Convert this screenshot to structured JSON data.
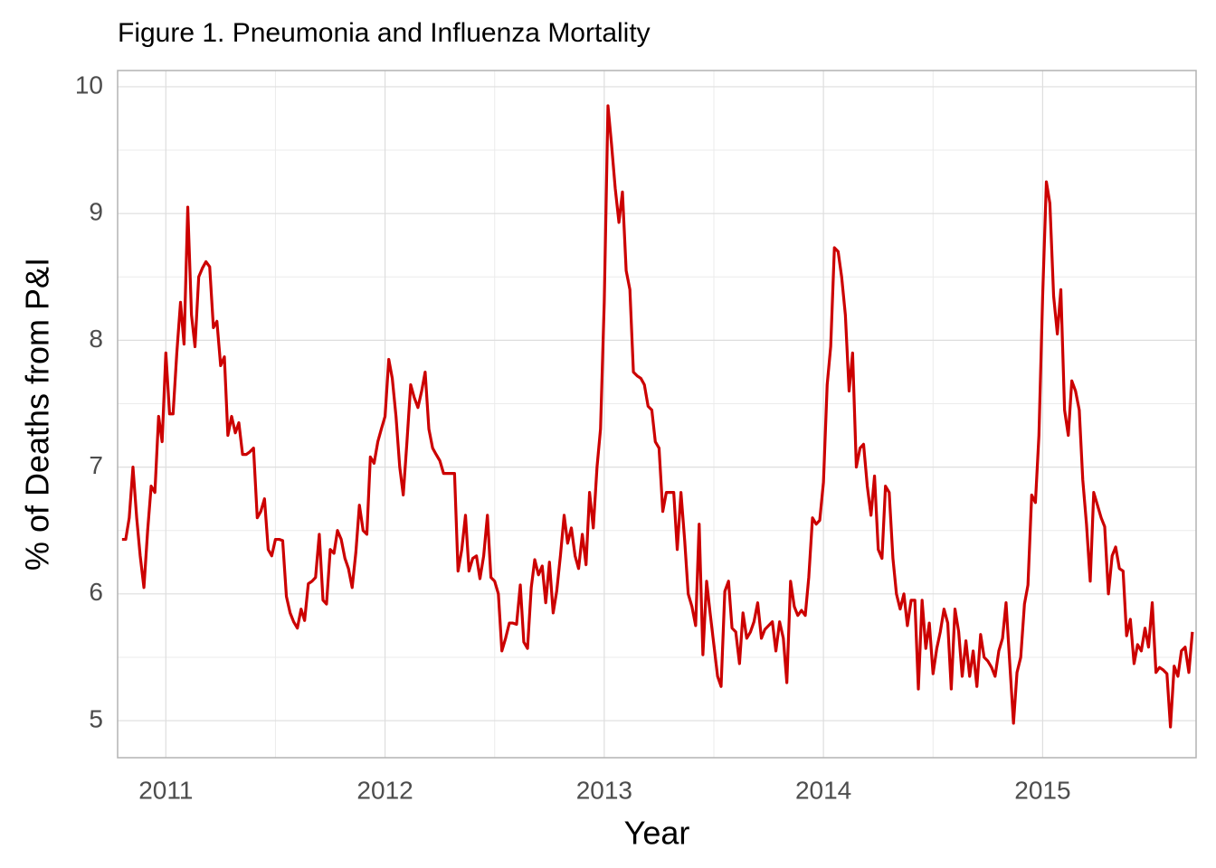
{
  "chart_data": {
    "type": "line",
    "title": "Figure 1. Pneumonia and Influenza Mortality",
    "xlabel": "Year",
    "ylabel": "% of Deaths from P&I",
    "color": "#cc0000",
    "grid": true,
    "minor_grid": true,
    "xlim": [
      2010.78,
      2015.7
    ],
    "ylim": [
      4.708,
      10.128
    ],
    "xticks": [
      2011,
      2012,
      2013,
      2014,
      2015
    ],
    "yticks": [
      5,
      6,
      7,
      8,
      9,
      10
    ],
    "x": [
      2010.8,
      2010.817,
      2010.833,
      2010.85,
      2010.867,
      2010.883,
      2010.9,
      2010.917,
      2010.933,
      2010.95,
      2010.967,
      2010.983,
      2011,
      2011.017,
      2011.033,
      2011.05,
      2011.067,
      2011.083,
      2011.1,
      2011.117,
      2011.133,
      2011.15,
      2011.167,
      2011.183,
      2011.2,
      2011.217,
      2011.233,
      2011.25,
      2011.267,
      2011.283,
      2011.3,
      2011.317,
      2011.333,
      2011.35,
      2011.367,
      2011.383,
      2011.4,
      2011.417,
      2011.433,
      2011.45,
      2011.467,
      2011.483,
      2011.5,
      2011.517,
      2011.533,
      2011.55,
      2011.567,
      2011.583,
      2011.6,
      2011.617,
      2011.633,
      2011.65,
      2011.667,
      2011.683,
      2011.7,
      2011.717,
      2011.733,
      2011.75,
      2011.767,
      2011.783,
      2011.8,
      2011.817,
      2011.833,
      2011.85,
      2011.867,
      2011.883,
      2011.9,
      2011.917,
      2011.933,
      2011.95,
      2011.967,
      2011.983,
      2012,
      2012.017,
      2012.033,
      2012.05,
      2012.067,
      2012.083,
      2012.1,
      2012.117,
      2012.133,
      2012.15,
      2012.167,
      2012.183,
      2012.2,
      2012.217,
      2012.233,
      2012.25,
      2012.267,
      2012.283,
      2012.3,
      2012.317,
      2012.333,
      2012.35,
      2012.367,
      2012.383,
      2012.4,
      2012.417,
      2012.433,
      2012.45,
      2012.467,
      2012.483,
      2012.5,
      2012.517,
      2012.533,
      2012.55,
      2012.567,
      2012.583,
      2012.6,
      2012.617,
      2012.633,
      2012.65,
      2012.667,
      2012.683,
      2012.7,
      2012.717,
      2012.733,
      2012.75,
      2012.767,
      2012.783,
      2012.8,
      2012.817,
      2012.833,
      2012.85,
      2012.867,
      2012.883,
      2012.9,
      2012.917,
      2012.933,
      2012.95,
      2012.967,
      2012.983,
      2013,
      2013.017,
      2013.033,
      2013.05,
      2013.067,
      2013.083,
      2013.1,
      2013.117,
      2013.133,
      2013.15,
      2013.167,
      2013.183,
      2013.2,
      2013.217,
      2013.233,
      2013.25,
      2013.267,
      2013.283,
      2013.3,
      2013.317,
      2013.333,
      2013.35,
      2013.367,
      2013.383,
      2013.4,
      2013.417,
      2013.433,
      2013.45,
      2013.467,
      2013.483,
      2013.5,
      2013.517,
      2013.533,
      2013.55,
      2013.567,
      2013.583,
      2013.6,
      2013.617,
      2013.633,
      2013.65,
      2013.667,
      2013.683,
      2013.7,
      2013.717,
      2013.733,
      2013.75,
      2013.767,
      2013.783,
      2013.8,
      2013.817,
      2013.833,
      2013.85,
      2013.867,
      2013.883,
      2013.9,
      2013.917,
      2013.933,
      2013.95,
      2013.967,
      2013.983,
      2014,
      2014.017,
      2014.033,
      2014.05,
      2014.067,
      2014.083,
      2014.1,
      2014.117,
      2014.133,
      2014.15,
      2014.167,
      2014.183,
      2014.2,
      2014.217,
      2014.233,
      2014.25,
      2014.267,
      2014.283,
      2014.3,
      2014.317,
      2014.333,
      2014.35,
      2014.367,
      2014.383,
      2014.4,
      2014.417,
      2014.433,
      2014.45,
      2014.467,
      2014.483,
      2014.5,
      2014.517,
      2014.533,
      2014.55,
      2014.567,
      2014.583,
      2014.6,
      2014.617,
      2014.633,
      2014.65,
      2014.667,
      2014.683,
      2014.7,
      2014.717,
      2014.733,
      2014.75,
      2014.767,
      2014.783,
      2014.8,
      2014.817,
      2014.833,
      2014.85,
      2014.867,
      2014.883,
      2014.9,
      2014.917,
      2014.933,
      2014.95,
      2014.967,
      2014.983,
      2015,
      2015.017,
      2015.033,
      2015.05,
      2015.067,
      2015.083,
      2015.1,
      2015.117,
      2015.133,
      2015.15,
      2015.167,
      2015.183,
      2015.2,
      2015.217,
      2015.233,
      2015.25,
      2015.267,
      2015.283,
      2015.3,
      2015.317,
      2015.333,
      2015.35,
      2015.367,
      2015.383,
      2015.4,
      2015.417,
      2015.433,
      2015.45,
      2015.467,
      2015.483,
      2015.5,
      2015.517,
      2015.533,
      2015.55,
      2015.567,
      2015.583,
      2015.6,
      2015.617,
      2015.633,
      2015.65,
      2015.667,
      2015.683
    ],
    "values": [
      6.43,
      6.43,
      6.6,
      7.0,
      6.6,
      6.3,
      6.05,
      6.5,
      6.85,
      6.8,
      7.4,
      7.2,
      7.9,
      7.42,
      7.42,
      7.9,
      8.3,
      7.97,
      9.05,
      8.2,
      7.95,
      8.5,
      8.57,
      8.62,
      8.58,
      8.1,
      8.15,
      7.8,
      7.87,
      7.25,
      7.4,
      7.27,
      7.35,
      7.1,
      7.1,
      7.12,
      7.15,
      6.6,
      6.65,
      6.75,
      6.35,
      6.3,
      6.43,
      6.43,
      6.42,
      5.98,
      5.85,
      5.78,
      5.73,
      5.88,
      5.79,
      6.08,
      6.1,
      6.13,
      6.47,
      5.95,
      5.92,
      6.35,
      6.32,
      6.5,
      6.43,
      6.28,
      6.2,
      6.05,
      6.33,
      6.7,
      6.5,
      6.47,
      7.08,
      7.03,
      7.2,
      7.3,
      7.4,
      7.85,
      7.7,
      7.4,
      7.0,
      6.78,
      7.2,
      7.65,
      7.55,
      7.47,
      7.6,
      7.75,
      7.3,
      7.15,
      7.1,
      7.05,
      6.95,
      6.95,
      6.95,
      6.95,
      6.18,
      6.35,
      6.62,
      6.18,
      6.28,
      6.3,
      6.12,
      6.3,
      6.62,
      6.13,
      6.1,
      6.0,
      5.55,
      5.65,
      5.77,
      5.77,
      5.76,
      6.07,
      5.62,
      5.57,
      6.05,
      6.27,
      6.15,
      6.22,
      5.93,
      6.25,
      5.85,
      6.02,
      6.3,
      6.62,
      6.4,
      6.52,
      6.3,
      6.2,
      6.47,
      6.23,
      6.8,
      6.52,
      7.0,
      7.3,
      8.3,
      9.85,
      9.55,
      9.2,
      8.93,
      9.17,
      8.55,
      8.4,
      7.75,
      7.72,
      7.7,
      7.65,
      7.48,
      7.45,
      7.2,
      7.15,
      6.65,
      6.8,
      6.8,
      6.8,
      6.35,
      6.8,
      6.42,
      6.0,
      5.9,
      5.75,
      6.55,
      5.52,
      6.1,
      5.85,
      5.6,
      5.35,
      5.27,
      6.02,
      6.1,
      5.73,
      5.7,
      5.45,
      5.85,
      5.65,
      5.7,
      5.78,
      5.93,
      5.65,
      5.72,
      5.75,
      5.78,
      5.55,
      5.78,
      5.65,
      5.3,
      6.1,
      5.9,
      5.83,
      5.87,
      5.83,
      6.13,
      6.6,
      6.55,
      6.58,
      6.88,
      7.65,
      7.95,
      8.73,
      8.7,
      8.5,
      8.2,
      7.6,
      7.9,
      7.0,
      7.15,
      7.18,
      6.85,
      6.62,
      6.93,
      6.35,
      6.28,
      6.85,
      6.8,
      6.28,
      6.0,
      5.88,
      6.0,
      5.75,
      5.95,
      5.95,
      5.25,
      5.95,
      5.57,
      5.77,
      5.37,
      5.57,
      5.7,
      5.88,
      5.77,
      5.25,
      5.88,
      5.7,
      5.35,
      5.63,
      5.35,
      5.55,
      5.27,
      5.68,
      5.5,
      5.47,
      5.42,
      5.35,
      5.55,
      5.65,
      5.93,
      5.45,
      4.98,
      5.38,
      5.5,
      5.92,
      6.07,
      6.78,
      6.72,
      7.25,
      8.35,
      9.25,
      9.08,
      8.35,
      8.05,
      8.4,
      7.45,
      7.25,
      7.68,
      7.6,
      7.45,
      6.9,
      6.55,
      6.1,
      6.8,
      6.7,
      6.6,
      6.53,
      6.0,
      6.3,
      6.37,
      6.2,
      6.18,
      5.67,
      5.8,
      5.45,
      5.6,
      5.55,
      5.73,
      5.58,
      5.93,
      5.38,
      5.42,
      5.4,
      5.37,
      4.95,
      5.43,
      5.35,
      5.55,
      5.58,
      5.38,
      5.7
    ]
  }
}
